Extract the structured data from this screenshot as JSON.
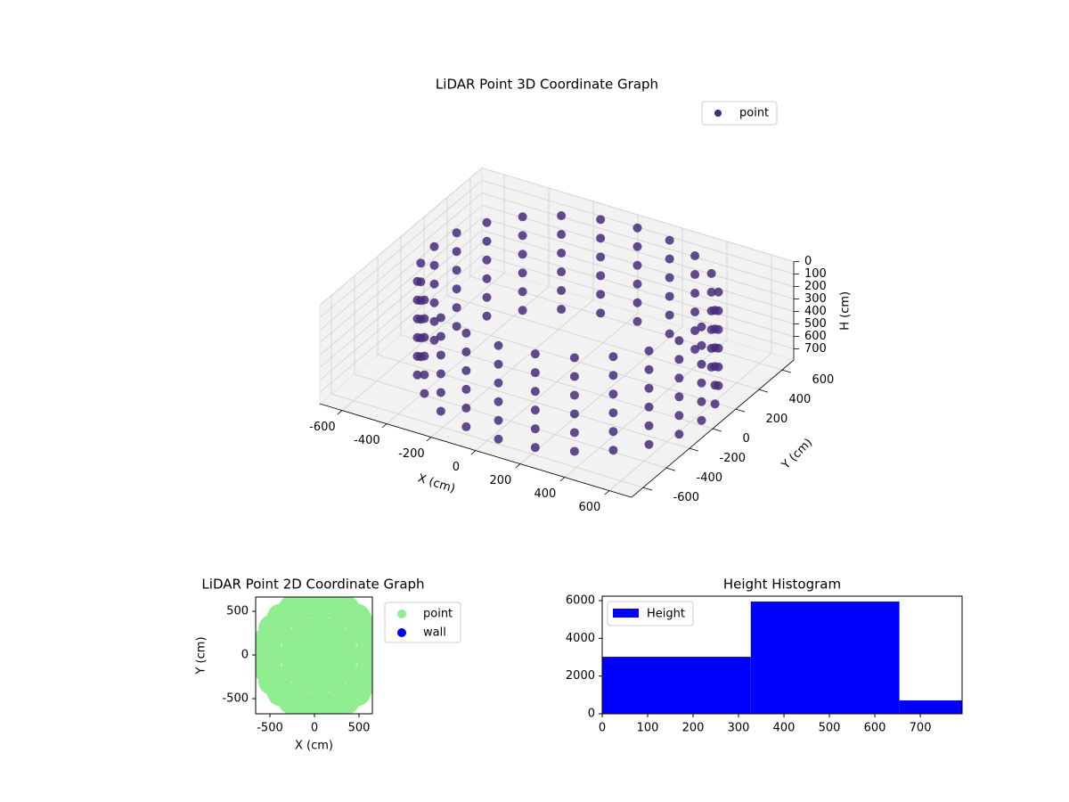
{
  "chart_data": [
    {
      "type": "scatter3d",
      "title": "LiDAR Point 3D Coordinate Graph",
      "xlabel": "X (cm)",
      "ylabel": "Y (cm)",
      "zlabel": "H (cm)",
      "xlim": [
        -700,
        700
      ],
      "ylim": [
        -700,
        700
      ],
      "zlim": [
        0,
        790
      ],
      "zinvert": true,
      "xticks": [
        -600,
        -400,
        -200,
        0,
        200,
        400,
        600
      ],
      "yticks": [
        -600,
        -400,
        -200,
        0,
        200,
        400,
        600
      ],
      "zticks": [
        0,
        100,
        200,
        300,
        400,
        500,
        600,
        700
      ],
      "grid": true,
      "legend": "upper right",
      "series": [
        {
          "name": "point",
          "color": "#472c7a",
          "x": [
            650,
            630,
            570,
            474,
            350,
            205,
            50,
            -105,
            -250,
            -374,
            -470,
            -530,
            -550,
            -530,
            -470,
            -374,
            -250,
            -105,
            50,
            205,
            350,
            474,
            570,
            630,
            650,
            630,
            570,
            474,
            350,
            205,
            50,
            -105,
            -250,
            -374,
            -470,
            -530,
            -550,
            -530,
            -470,
            -374,
            -250,
            -105,
            50,
            205,
            350,
            474,
            570,
            630,
            650,
            630,
            570,
            474,
            350,
            205,
            50,
            -105,
            -250,
            -374,
            -470,
            -530,
            -550,
            -530,
            -470,
            -374,
            -250,
            -105,
            50,
            205,
            350,
            474,
            570,
            630,
            650,
            630,
            570,
            474,
            350,
            205,
            50,
            -105,
            -250,
            -374,
            -470,
            -530,
            -550,
            -530,
            -470,
            -374,
            -250,
            -105,
            50,
            205,
            350,
            474,
            570,
            630,
            650,
            630,
            570,
            474,
            350,
            205,
            50,
            -105,
            -250,
            -374,
            -470,
            -530,
            -550,
            -530,
            -470,
            -374,
            -250,
            -105,
            50,
            205,
            350,
            474,
            570,
            630,
            650,
            630,
            570,
            474,
            350,
            205,
            50,
            -105,
            -250,
            -374,
            -470,
            -530,
            -550,
            -530,
            -470,
            -374,
            -250,
            -105,
            50,
            205,
            350,
            474,
            570,
            630
          ],
          "y": [
            0,
            155,
            300,
            424,
            520,
            580,
            600,
            580,
            520,
            424,
            300,
            155,
            0,
            -155,
            -300,
            -424,
            -520,
            -580,
            -600,
            -580,
            -520,
            -424,
            -300,
            -155,
            0,
            155,
            300,
            424,
            520,
            580,
            600,
            580,
            520,
            424,
            300,
            155,
            0,
            -155,
            -300,
            -424,
            -520,
            -580,
            -600,
            -580,
            -520,
            -424,
            -300,
            -155,
            0,
            155,
            300,
            424,
            520,
            580,
            600,
            580,
            520,
            424,
            300,
            155,
            0,
            -155,
            -300,
            -424,
            -520,
            -580,
            -600,
            -580,
            -520,
            -424,
            -300,
            -155,
            0,
            155,
            300,
            424,
            520,
            580,
            600,
            580,
            520,
            424,
            300,
            155,
            0,
            -155,
            -300,
            -424,
            -520,
            -580,
            -600,
            -580,
            -520,
            -424,
            -300,
            -155,
            0,
            155,
            300,
            424,
            520,
            580,
            600,
            580,
            520,
            424,
            300,
            155,
            0,
            -155,
            -300,
            -424,
            -520,
            -580,
            -600,
            -580,
            -520,
            -424,
            -300,
            -155,
            0,
            155,
            300,
            424,
            520,
            580,
            600,
            580,
            520,
            424,
            300,
            155,
            0,
            -155,
            -300,
            -424,
            -520,
            -580,
            -600,
            -580,
            -520,
            -424,
            -300,
            -155
          ],
          "z": [
            0,
            0,
            0,
            0,
            0,
            0,
            0,
            0,
            0,
            0,
            0,
            0,
            0,
            0,
            0,
            0,
            0,
            0,
            0,
            0,
            0,
            0,
            0,
            0,
            150,
            150,
            150,
            150,
            150,
            150,
            150,
            150,
            150,
            150,
            150,
            150,
            150,
            150,
            150,
            150,
            150,
            150,
            150,
            150,
            150,
            150,
            150,
            150,
            300,
            300,
            300,
            300,
            300,
            300,
            300,
            300,
            300,
            300,
            300,
            300,
            300,
            300,
            300,
            300,
            300,
            300,
            300,
            300,
            300,
            300,
            300,
            300,
            450,
            450,
            450,
            450,
            450,
            450,
            450,
            450,
            450,
            450,
            450,
            450,
            450,
            450,
            450,
            450,
            450,
            450,
            450,
            450,
            450,
            450,
            450,
            450,
            600,
            600,
            600,
            600,
            600,
            600,
            600,
            600,
            600,
            600,
            600,
            600,
            600,
            600,
            600,
            600,
            600,
            600,
            600,
            600,
            600,
            600,
            600,
            600,
            750,
            750,
            750,
            750,
            750,
            750,
            750,
            750,
            750,
            750,
            750,
            750,
            750,
            750,
            750,
            750,
            750,
            750,
            750,
            750,
            750,
            750,
            750,
            750
          ]
        }
      ]
    },
    {
      "type": "scatter",
      "title": "LiDAR Point 2D Coordinate Graph",
      "xlabel": "X (cm)",
      "ylabel": "Y (cm)",
      "xlim": [
        -660,
        650
      ],
      "ylim": [
        -673,
        663
      ],
      "xticks": [
        -500,
        0,
        500
      ],
      "yticks": [
        -500,
        0,
        500
      ],
      "legend": "right",
      "series": [
        {
          "name": "point",
          "color": "#90ee90",
          "x": [
            650,
            630,
            570,
            474,
            350,
            205,
            50,
            -105,
            -250,
            -374,
            -470,
            -530,
            -550,
            -530,
            -470,
            -374,
            -250,
            -105,
            50,
            205,
            350,
            474,
            570,
            630,
            350,
            310,
            200,
            50,
            -100,
            -210,
            -250,
            -210,
            -100,
            50,
            200,
            310,
            50
          ],
          "y": [
            0,
            155,
            300,
            424,
            520,
            580,
            600,
            580,
            520,
            424,
            300,
            155,
            0,
            -155,
            -300,
            -424,
            -520,
            -580,
            -600,
            -580,
            -520,
            -424,
            -300,
            -155,
            0,
            150,
            260,
            300,
            260,
            150,
            0,
            -150,
            -260,
            -300,
            -260,
            -150,
            0
          ]
        },
        {
          "name": "wall",
          "color": "#0000ff",
          "x": [],
          "y": []
        }
      ]
    },
    {
      "type": "histogram",
      "title": "Height Histogram",
      "name": "Height",
      "color": "#0000ff",
      "legend": "upper left",
      "bins": [
        0,
        327,
        654,
        792
      ],
      "values": [
        3020,
        5950,
        710
      ],
      "xlim": [
        0,
        792
      ],
      "ylim": [
        0,
        6236
      ],
      "xticks": [
        0,
        100,
        200,
        300,
        400,
        500,
        600,
        700
      ],
      "yticks": [
        0,
        2000,
        4000,
        6000
      ]
    }
  ]
}
